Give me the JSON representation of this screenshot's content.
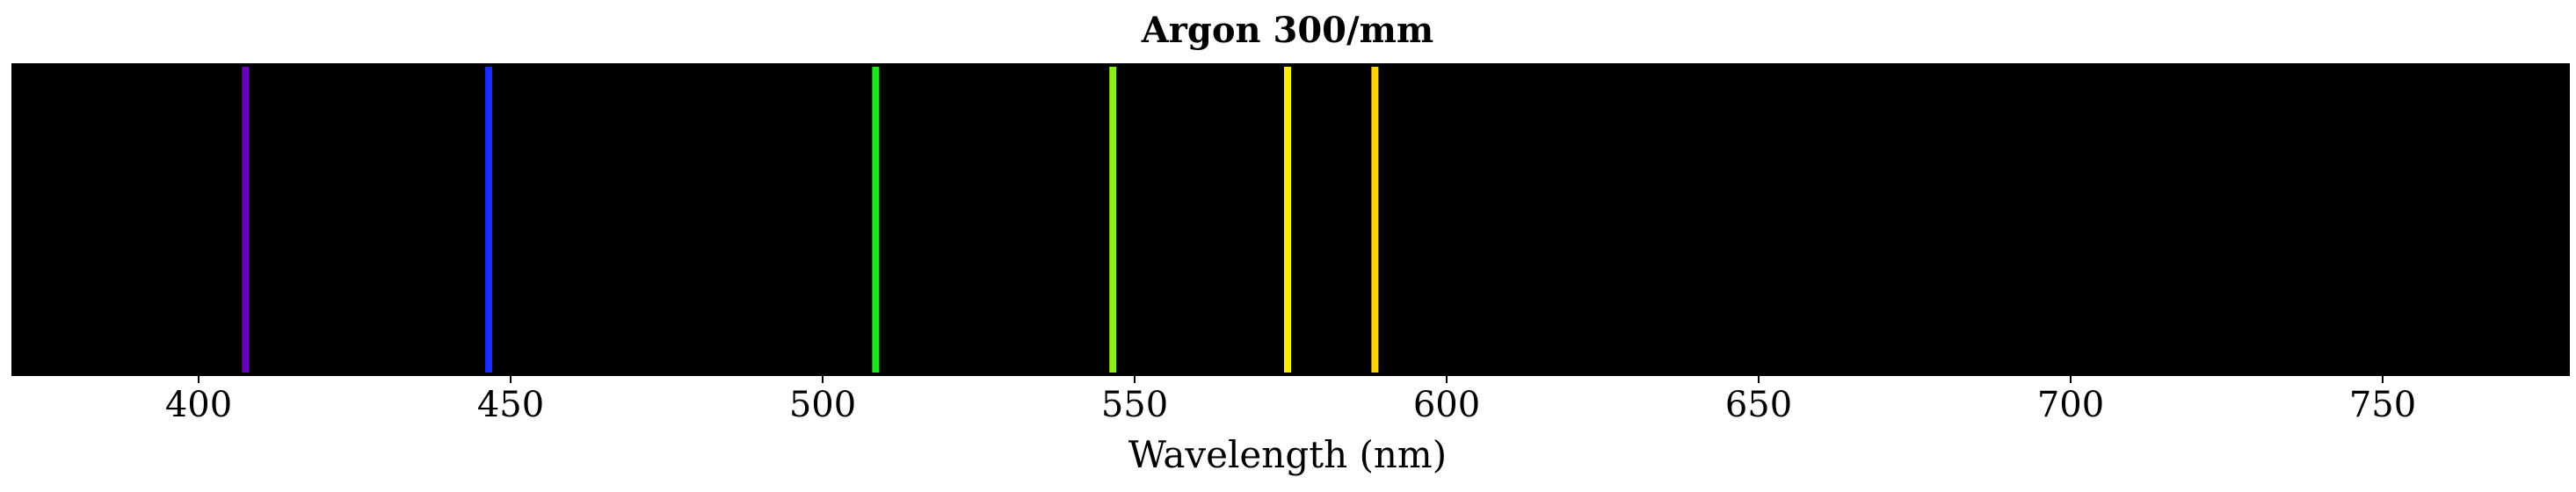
{
  "chart_data": {
    "type": "spectrum",
    "title": "Argon 300/mm",
    "xlabel": "Wavelength (nm)",
    "ylabel": "",
    "xlim": [
      370,
      780
    ],
    "xticks": [
      400,
      450,
      500,
      550,
      600,
      650,
      700,
      750
    ],
    "xtick_labels": [
      "400",
      "450",
      "500",
      "550",
      "600",
      "650",
      "700",
      "750"
    ],
    "grid": false,
    "legend": "none",
    "background_color": "#000000",
    "lines": [
      {
        "wavelength": 407.5,
        "color": "#6a00b8"
      },
      {
        "wavelength": 446.5,
        "color": "#1a2cff"
      },
      {
        "wavelength": 508.5,
        "color": "#1ee61a"
      },
      {
        "wavelength": 546.5,
        "color": "#8cf01a"
      },
      {
        "wavelength": 574.5,
        "color": "#ffee00"
      },
      {
        "wavelength": 588.5,
        "color": "#ffd200"
      }
    ]
  }
}
